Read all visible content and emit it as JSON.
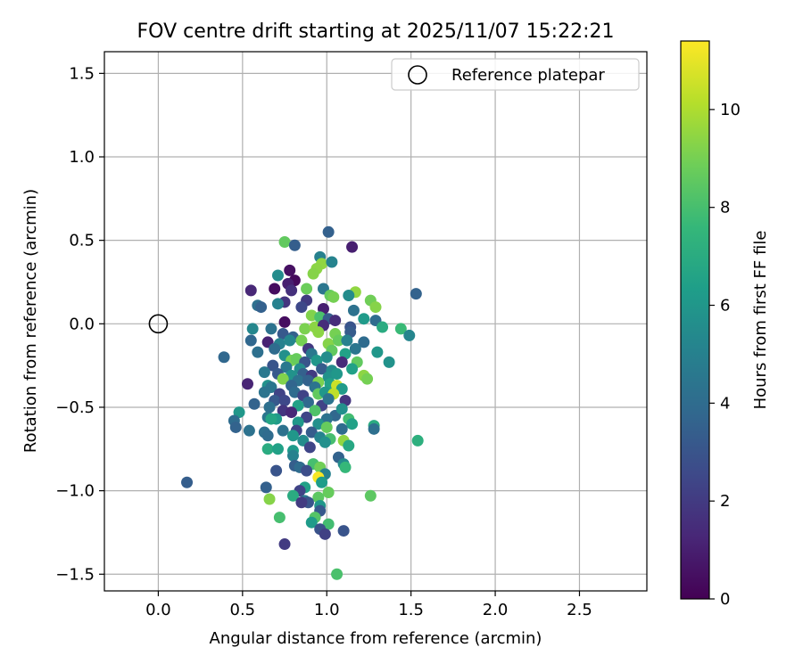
{
  "chart_data": {
    "type": "scatter",
    "title": "FOV centre drift starting at 2025/11/07 15:22:21",
    "xlabel": "Angular distance from reference (arcmin)",
    "ylabel": "Rotation from reference (arcmin)",
    "xlim": [
      -0.32,
      2.9
    ],
    "ylim": [
      -1.6,
      1.63
    ],
    "xticks": [
      "0.0",
      "0.5",
      "1.0",
      "1.5",
      "2.0",
      "2.5"
    ],
    "xtick_values": [
      0.0,
      0.5,
      1.0,
      1.5,
      2.0,
      2.5
    ],
    "yticks": [
      "1.5",
      "1.0",
      "0.5",
      "0.0",
      "−0.5",
      "−1.0",
      "−1.5"
    ],
    "ytick_values": [
      1.5,
      1.0,
      0.5,
      0.0,
      -0.5,
      -1.0,
      -1.5
    ],
    "grid": true,
    "legend": {
      "location": "top-right",
      "entries": [
        "Reference platepar"
      ]
    },
    "reference_point": {
      "x": 0.0,
      "y": 0.0
    },
    "colorbar": {
      "label": "Hours from first FF file",
      "range": [
        0,
        11.4
      ],
      "ticks": [
        "0",
        "2",
        "4",
        "6",
        "8",
        "10"
      ],
      "tick_values": [
        0,
        2,
        4,
        6,
        8,
        10
      ],
      "colormap": [
        "#440154",
        "#482777",
        "#3e4989",
        "#31688e",
        "#26828e",
        "#1f9e89",
        "#35b779",
        "#6ece58",
        "#b5de2b",
        "#fde725"
      ]
    },
    "points": [
      {
        "x": 1.01,
        "y": 0.55,
        "h": 3.5
      },
      {
        "x": 0.75,
        "y": 0.49,
        "h": 8.6
      },
      {
        "x": 0.81,
        "y": 0.47,
        "h": 3.4
      },
      {
        "x": 1.15,
        "y": 0.46,
        "h": 1.0
      },
      {
        "x": 0.96,
        "y": 0.4,
        "h": 5.0
      },
      {
        "x": 0.97,
        "y": 0.36,
        "h": 9.5
      },
      {
        "x": 1.03,
        "y": 0.37,
        "h": 5.1
      },
      {
        "x": 0.94,
        "y": 0.33,
        "h": 9.4
      },
      {
        "x": 0.78,
        "y": 0.32,
        "h": 0.5
      },
      {
        "x": 0.92,
        "y": 0.3,
        "h": 9.3
      },
      {
        "x": 0.71,
        "y": 0.29,
        "h": 5.5
      },
      {
        "x": 0.81,
        "y": 0.26,
        "h": 0.3
      },
      {
        "x": 0.77,
        "y": 0.24,
        "h": 1.0
      },
      {
        "x": 0.55,
        "y": 0.2,
        "h": 1.3
      },
      {
        "x": 0.69,
        "y": 0.21,
        "h": 0.4
      },
      {
        "x": 0.79,
        "y": 0.2,
        "h": 1.6
      },
      {
        "x": 0.88,
        "y": 0.21,
        "h": 8.8
      },
      {
        "x": 0.98,
        "y": 0.21,
        "h": 4.5
      },
      {
        "x": 1.17,
        "y": 0.19,
        "h": 9.5
      },
      {
        "x": 1.53,
        "y": 0.18,
        "h": 3.6
      },
      {
        "x": 1.02,
        "y": 0.17,
        "h": 8.7
      },
      {
        "x": 1.13,
        "y": 0.17,
        "h": 5.5
      },
      {
        "x": 1.04,
        "y": 0.16,
        "h": 9.0
      },
      {
        "x": 0.75,
        "y": 0.13,
        "h": 1.8
      },
      {
        "x": 0.88,
        "y": 0.14,
        "h": 2.0
      },
      {
        "x": 1.26,
        "y": 0.14,
        "h": 8.9
      },
      {
        "x": 0.59,
        "y": 0.11,
        "h": 4.2
      },
      {
        "x": 0.61,
        "y": 0.1,
        "h": 3.5
      },
      {
        "x": 0.71,
        "y": 0.12,
        "h": 5.0
      },
      {
        "x": 0.85,
        "y": 0.1,
        "h": 2.5
      },
      {
        "x": 0.98,
        "y": 0.09,
        "h": 1.0
      },
      {
        "x": 1.16,
        "y": 0.08,
        "h": 4.3
      },
      {
        "x": 1.29,
        "y": 0.1,
        "h": 9.3
      },
      {
        "x": 0.91,
        "y": 0.05,
        "h": 9.2
      },
      {
        "x": 0.96,
        "y": 0.04,
        "h": 8.1
      },
      {
        "x": 1.01,
        "y": 0.03,
        "h": 3.3
      },
      {
        "x": 0.75,
        "y": 0.01,
        "h": 0.4
      },
      {
        "x": 1.05,
        "y": 0.02,
        "h": 1.5
      },
      {
        "x": 1.22,
        "y": 0.03,
        "h": 6.2
      },
      {
        "x": 1.29,
        "y": 0.02,
        "h": 4.0
      },
      {
        "x": 0.56,
        "y": -0.03,
        "h": 5.3
      },
      {
        "x": 0.67,
        "y": -0.03,
        "h": 4.3
      },
      {
        "x": 0.87,
        "y": -0.03,
        "h": 9.1
      },
      {
        "x": 0.93,
        "y": -0.02,
        "h": 9.4
      },
      {
        "x": 0.98,
        "y": -0.01,
        "h": 1.5
      },
      {
        "x": 1.14,
        "y": -0.02,
        "h": 3.0
      },
      {
        "x": 1.33,
        "y": -0.02,
        "h": 7.0
      },
      {
        "x": 1.44,
        "y": -0.03,
        "h": 7.7
      },
      {
        "x": 1.49,
        "y": -0.07,
        "h": 5.2
      },
      {
        "x": 0.74,
        "y": -0.06,
        "h": 3.2
      },
      {
        "x": 0.8,
        "y": -0.08,
        "h": 3.5
      },
      {
        "x": 0.95,
        "y": -0.05,
        "h": 9.4
      },
      {
        "x": 1.05,
        "y": -0.06,
        "h": 9.0
      },
      {
        "x": 1.14,
        "y": -0.05,
        "h": 3.3
      },
      {
        "x": 0.55,
        "y": -0.1,
        "h": 3.8
      },
      {
        "x": 0.65,
        "y": -0.11,
        "h": 1.1
      },
      {
        "x": 0.72,
        "y": -0.12,
        "h": 5.0
      },
      {
        "x": 0.78,
        "y": -0.1,
        "h": 5.3
      },
      {
        "x": 0.85,
        "y": -0.1,
        "h": 9.0
      },
      {
        "x": 1.01,
        "y": -0.12,
        "h": 9.3
      },
      {
        "x": 1.07,
        "y": -0.1,
        "h": 8.7
      },
      {
        "x": 1.12,
        "y": -0.1,
        "h": 5.0
      },
      {
        "x": 1.22,
        "y": -0.11,
        "h": 4.0
      },
      {
        "x": 0.69,
        "y": -0.15,
        "h": 4.0
      },
      {
        "x": 0.89,
        "y": -0.15,
        "h": 1.9
      },
      {
        "x": 1.03,
        "y": -0.16,
        "h": 8.6
      },
      {
        "x": 1.17,
        "y": -0.15,
        "h": 4.5
      },
      {
        "x": 1.3,
        "y": -0.17,
        "h": 6.0
      },
      {
        "x": 0.59,
        "y": -0.17,
        "h": 4.2
      },
      {
        "x": 0.75,
        "y": -0.19,
        "h": 5.7
      },
      {
        "x": 0.91,
        "y": -0.18,
        "h": 4.6
      },
      {
        "x": 1.0,
        "y": -0.2,
        "h": 5.5
      },
      {
        "x": 1.11,
        "y": -0.18,
        "h": 6.5
      },
      {
        "x": 0.39,
        "y": -0.2,
        "h": 3.8
      },
      {
        "x": 0.79,
        "y": -0.22,
        "h": 9.0
      },
      {
        "x": 0.82,
        "y": -0.21,
        "h": 8.7
      },
      {
        "x": 0.87,
        "y": -0.23,
        "h": 3.0
      },
      {
        "x": 0.94,
        "y": -0.22,
        "h": 6.0
      },
      {
        "x": 1.09,
        "y": -0.23,
        "h": 1.4
      },
      {
        "x": 1.18,
        "y": -0.23,
        "h": 8.6
      },
      {
        "x": 1.37,
        "y": -0.23,
        "h": 5.8
      },
      {
        "x": 0.68,
        "y": -0.25,
        "h": 3.0
      },
      {
        "x": 0.76,
        "y": -0.26,
        "h": 4.6
      },
      {
        "x": 0.84,
        "y": -0.27,
        "h": 5.5
      },
      {
        "x": 0.97,
        "y": -0.27,
        "h": 3.3
      },
      {
        "x": 1.03,
        "y": -0.28,
        "h": 5.5
      },
      {
        "x": 1.15,
        "y": -0.27,
        "h": 6.5
      },
      {
        "x": 0.63,
        "y": -0.29,
        "h": 4.6
      },
      {
        "x": 0.71,
        "y": -0.3,
        "h": 3.2
      },
      {
        "x": 0.79,
        "y": -0.31,
        "h": 5.8
      },
      {
        "x": 0.86,
        "y": -0.3,
        "h": 3.5
      },
      {
        "x": 0.91,
        "y": -0.31,
        "h": 2.0
      },
      {
        "x": 1.01,
        "y": -0.32,
        "h": 5.8
      },
      {
        "x": 1.06,
        "y": -0.3,
        "h": 6.0
      },
      {
        "x": 1.22,
        "y": -0.31,
        "h": 9.4
      },
      {
        "x": 1.24,
        "y": -0.33,
        "h": 9.0
      },
      {
        "x": 0.74,
        "y": -0.33,
        "h": 9.2
      },
      {
        "x": 0.83,
        "y": -0.34,
        "h": 4.3
      },
      {
        "x": 0.89,
        "y": -0.34,
        "h": 3.6
      },
      {
        "x": 0.95,
        "y": -0.35,
        "h": 9.1
      },
      {
        "x": 0.53,
        "y": -0.36,
        "h": 1.2
      },
      {
        "x": 0.65,
        "y": -0.37,
        "h": 5.8
      },
      {
        "x": 0.67,
        "y": -0.38,
        "h": 4.5
      },
      {
        "x": 0.79,
        "y": -0.37,
        "h": 3.7
      },
      {
        "x": 0.93,
        "y": -0.38,
        "h": 4.4
      },
      {
        "x": 1.02,
        "y": -0.36,
        "h": 6.5
      },
      {
        "x": 1.06,
        "y": -0.37,
        "h": 10.5
      },
      {
        "x": 1.09,
        "y": -0.39,
        "h": 6.2
      },
      {
        "x": 0.63,
        "y": -0.41,
        "h": 4.4
      },
      {
        "x": 0.72,
        "y": -0.42,
        "h": 2.3
      },
      {
        "x": 0.81,
        "y": -0.41,
        "h": 4.0
      },
      {
        "x": 0.86,
        "y": -0.43,
        "h": 2.3
      },
      {
        "x": 0.95,
        "y": -0.42,
        "h": 8.6
      },
      {
        "x": 0.99,
        "y": -0.41,
        "h": 6.0
      },
      {
        "x": 1.04,
        "y": -0.42,
        "h": 10.3
      },
      {
        "x": 0.69,
        "y": -0.46,
        "h": 3.2
      },
      {
        "x": 0.75,
        "y": -0.46,
        "h": 2.5
      },
      {
        "x": 0.89,
        "y": -0.47,
        "h": 3.9
      },
      {
        "x": 0.97,
        "y": -0.49,
        "h": 2.3
      },
      {
        "x": 1.11,
        "y": -0.46,
        "h": 1.8
      },
      {
        "x": 1.01,
        "y": -0.45,
        "h": 4.3
      },
      {
        "x": 0.57,
        "y": -0.48,
        "h": 3.6
      },
      {
        "x": 0.66,
        "y": -0.5,
        "h": 4.2
      },
      {
        "x": 0.83,
        "y": -0.49,
        "h": 6.5
      },
      {
        "x": 0.48,
        "y": -0.53,
        "h": 6.0
      },
      {
        "x": 0.74,
        "y": -0.52,
        "h": 1.8
      },
      {
        "x": 0.79,
        "y": -0.53,
        "h": 1.3
      },
      {
        "x": 0.93,
        "y": -0.52,
        "h": 8.2
      },
      {
        "x": 1.05,
        "y": -0.55,
        "h": 3.8
      },
      {
        "x": 1.09,
        "y": -0.51,
        "h": 5.7
      },
      {
        "x": 0.65,
        "y": -0.56,
        "h": 4.5
      },
      {
        "x": 0.7,
        "y": -0.57,
        "h": 6.2
      },
      {
        "x": 0.88,
        "y": -0.56,
        "h": 2.4
      },
      {
        "x": 1.0,
        "y": -0.57,
        "h": 4.3
      },
      {
        "x": 1.13,
        "y": -0.57,
        "h": 7.9
      },
      {
        "x": 0.45,
        "y": -0.58,
        "h": 4.0
      },
      {
        "x": 0.67,
        "y": -0.57,
        "h": 6.7
      },
      {
        "x": 0.83,
        "y": -0.59,
        "h": 6.0
      },
      {
        "x": 0.95,
        "y": -0.6,
        "h": 5.7
      },
      {
        "x": 1.15,
        "y": -0.6,
        "h": 6.5
      },
      {
        "x": 1.28,
        "y": -0.61,
        "h": 7.0
      },
      {
        "x": 0.46,
        "y": -0.62,
        "h": 3.6
      },
      {
        "x": 0.54,
        "y": -0.64,
        "h": 4.3
      },
      {
        "x": 0.63,
        "y": -0.65,
        "h": 4.2
      },
      {
        "x": 0.74,
        "y": -0.64,
        "h": 4.3
      },
      {
        "x": 0.82,
        "y": -0.64,
        "h": 2.3
      },
      {
        "x": 0.91,
        "y": -0.65,
        "h": 3.3
      },
      {
        "x": 1.0,
        "y": -0.62,
        "h": 8.7
      },
      {
        "x": 1.09,
        "y": -0.63,
        "h": 4.0
      },
      {
        "x": 1.28,
        "y": -0.63,
        "h": 4.2
      },
      {
        "x": 0.65,
        "y": -0.67,
        "h": 4.0
      },
      {
        "x": 0.8,
        "y": -0.67,
        "h": 6.0
      },
      {
        "x": 0.96,
        "y": -0.68,
        "h": 5.1
      },
      {
        "x": 1.02,
        "y": -0.69,
        "h": 8.0
      },
      {
        "x": 0.86,
        "y": -0.7,
        "h": 5.5
      },
      {
        "x": 0.99,
        "y": -0.71,
        "h": 5.7
      },
      {
        "x": 1.1,
        "y": -0.7,
        "h": 9.5
      },
      {
        "x": 1.54,
        "y": -0.7,
        "h": 7.2
      },
      {
        "x": 1.13,
        "y": -0.73,
        "h": 6.8
      },
      {
        "x": 0.65,
        "y": -0.75,
        "h": 7.0
      },
      {
        "x": 0.71,
        "y": -0.75,
        "h": 6.5
      },
      {
        "x": 0.8,
        "y": -0.76,
        "h": 6.2
      },
      {
        "x": 0.9,
        "y": -0.74,
        "h": 2.4
      },
      {
        "x": 0.8,
        "y": -0.79,
        "h": 5.0
      },
      {
        "x": 1.07,
        "y": -0.8,
        "h": 3.6
      },
      {
        "x": 1.1,
        "y": -0.84,
        "h": 5.5
      },
      {
        "x": 0.92,
        "y": -0.84,
        "h": 8.0
      },
      {
        "x": 0.81,
        "y": -0.85,
        "h": 3.4
      },
      {
        "x": 0.7,
        "y": -0.88,
        "h": 3.0
      },
      {
        "x": 0.84,
        "y": -0.86,
        "h": 4.0
      },
      {
        "x": 0.88,
        "y": -0.88,
        "h": 2.7
      },
      {
        "x": 0.96,
        "y": -0.86,
        "h": 8.9
      },
      {
        "x": 1.11,
        "y": -0.86,
        "h": 7.6
      },
      {
        "x": 0.99,
        "y": -0.9,
        "h": 5.0
      },
      {
        "x": 0.95,
        "y": -0.92,
        "h": 11.3
      },
      {
        "x": 0.97,
        "y": -0.95,
        "h": 6.3
      },
      {
        "x": 0.17,
        "y": -0.95,
        "h": 3.4
      },
      {
        "x": 0.64,
        "y": -0.98,
        "h": 3.5
      },
      {
        "x": 0.87,
        "y": -0.98,
        "h": 6.5
      },
      {
        "x": 0.84,
        "y": -1.0,
        "h": 2.3
      },
      {
        "x": 1.01,
        "y": -1.01,
        "h": 8.7
      },
      {
        "x": 0.8,
        "y": -1.03,
        "h": 7.0
      },
      {
        "x": 0.95,
        "y": -1.04,
        "h": 8.5
      },
      {
        "x": 1.26,
        "y": -1.03,
        "h": 8.5
      },
      {
        "x": 0.66,
        "y": -1.05,
        "h": 9.3
      },
      {
        "x": 0.87,
        "y": -1.06,
        "h": 4.6
      },
      {
        "x": 0.89,
        "y": -1.07,
        "h": 3.0
      },
      {
        "x": 0.85,
        "y": -1.07,
        "h": 2.0
      },
      {
        "x": 0.96,
        "y": -1.09,
        "h": 6.0
      },
      {
        "x": 0.96,
        "y": -1.12,
        "h": 3.2
      },
      {
        "x": 0.72,
        "y": -1.16,
        "h": 8.0
      },
      {
        "x": 0.93,
        "y": -1.16,
        "h": 8.3
      },
      {
        "x": 0.91,
        "y": -1.19,
        "h": 6.2
      },
      {
        "x": 1.01,
        "y": -1.2,
        "h": 7.9
      },
      {
        "x": 0.96,
        "y": -1.23,
        "h": 2.9
      },
      {
        "x": 1.1,
        "y": -1.24,
        "h": 3.0
      },
      {
        "x": 0.99,
        "y": -1.26,
        "h": 2.2
      },
      {
        "x": 0.75,
        "y": -1.32,
        "h": 2.0
      },
      {
        "x": 1.06,
        "y": -1.5,
        "h": 8.1
      }
    ]
  }
}
